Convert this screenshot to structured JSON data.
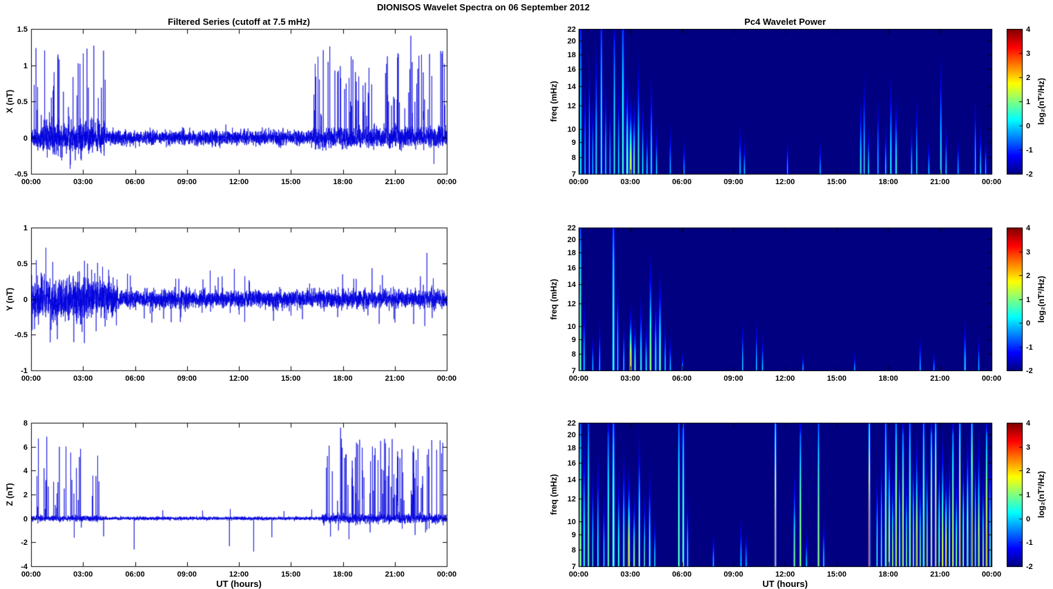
{
  "title": "DIONISOS Wavelet Spectra on 06 September 2012",
  "left_title": "Filtered Series (cutoff at 7.5 mHz)",
  "right_title": "Pc4 Wavelet Power",
  "xlabel": "UT (hours)",
  "series_color": "#0000dd",
  "axes": {
    "x_ticks": [
      "00:00",
      "03:00",
      "06:00",
      "09:00",
      "12:00",
      "15:00",
      "18:00",
      "21:00",
      "00:00"
    ],
    "x_range_hours": [
      0,
      24
    ],
    "freq_tick_vals": [
      7,
      8,
      9,
      10,
      12,
      14,
      16,
      18,
      20,
      22
    ],
    "freq_tick_labels": [
      "7",
      "8",
      "9",
      "10",
      "12",
      "14",
      "16",
      "18",
      "20",
      "22"
    ],
    "freq_scale": "log",
    "freq_range_mhz": [
      7,
      22
    ]
  },
  "colorbar": {
    "label": "log₂(nT²/Hz)",
    "tick_vals": [
      4,
      3,
      2,
      1,
      0,
      -1,
      -2
    ],
    "tick_labels": [
      "4",
      "3",
      "2",
      "1",
      "0",
      "-1",
      "-2"
    ],
    "range": [
      -2,
      4
    ],
    "colormap": "jet"
  },
  "chart_data": [
    {
      "name": "X filtered series",
      "type": "line",
      "ylabel": "X (nT)",
      "ylim": [
        -0.5,
        1.5
      ],
      "ytick_vals": [
        -0.5,
        0,
        0.5,
        1,
        1.5
      ],
      "ytick_labels": [
        "-0.5",
        "0",
        "0.5",
        "1",
        "1.5"
      ],
      "seed": 11,
      "noise": [
        [
          0,
          0.5,
          0.06
        ],
        [
          0.5,
          4.3,
          0.1
        ],
        [
          4.3,
          16.3,
          0.05
        ],
        [
          16.3,
          24,
          0.07
        ]
      ],
      "spikes": [
        {
          "t0": 0.15,
          "t1": 4.3,
          "rate": 0.06,
          "amp": [
            0.25,
            1.25
          ],
          "negProb": 0.25,
          "negScale": 0.35
        },
        {
          "t0": 16.3,
          "t1": 23.9,
          "rate": 0.07,
          "amp": [
            0.25,
            1.2
          ],
          "negProb": 0.1,
          "negScale": 0.3
        }
      ],
      "events": [
        [
          1.62,
          1.15
        ],
        [
          3.62,
          1.3
        ],
        [
          1.7,
          -0.45
        ]
      ]
    },
    {
      "name": "X wavelet power (Pc4)",
      "type": "heatmap",
      "ylabel": "freq (mHz)",
      "flim": [
        7,
        22
      ],
      "clim": [
        -2,
        4
      ],
      "background_log2_power": -2,
      "events": [
        [
          0.1,
          0.05,
          22,
          0.6
        ],
        [
          0.35,
          0.04,
          14,
          0.3
        ],
        [
          0.6,
          0.04,
          16,
          0.5
        ],
        [
          0.8,
          0.04,
          12,
          0.3
        ],
        [
          1.0,
          0.05,
          18,
          0.6
        ],
        [
          1.3,
          0.05,
          22,
          0.8
        ],
        [
          1.55,
          0.04,
          14,
          0.5
        ],
        [
          1.8,
          0.04,
          12,
          0.4
        ],
        [
          2.05,
          0.05,
          20,
          0.7
        ],
        [
          2.3,
          0.04,
          14,
          0.5
        ],
        [
          2.55,
          0.06,
          22,
          1.0
        ],
        [
          2.8,
          0.06,
          14,
          1.6
        ],
        [
          3.0,
          0.07,
          12,
          2.0
        ],
        [
          3.2,
          0.05,
          12,
          1.4
        ],
        [
          3.45,
          0.05,
          16,
          0.9
        ],
        [
          3.7,
          0.04,
          12,
          0.6
        ],
        [
          3.95,
          0.04,
          10,
          0.5
        ],
        [
          4.2,
          0.05,
          14,
          0.7
        ],
        [
          4.5,
          0.04,
          10,
          0.4
        ],
        [
          5.3,
          0.03,
          10,
          0.2
        ],
        [
          6.1,
          0.03,
          9,
          0.1
        ],
        [
          9.35,
          0.04,
          10,
          0.4
        ],
        [
          9.6,
          0.03,
          9,
          0.3
        ],
        [
          12.1,
          0.03,
          9,
          0.15
        ],
        [
          14.0,
          0.03,
          9,
          0.1
        ],
        [
          16.35,
          0.05,
          12,
          0.8
        ],
        [
          16.55,
          0.04,
          14,
          0.9
        ],
        [
          16.8,
          0.04,
          10,
          0.5
        ],
        [
          17.35,
          0.04,
          12,
          0.5
        ],
        [
          17.8,
          0.04,
          10,
          0.5
        ],
        [
          18.1,
          0.05,
          14,
          0.8
        ],
        [
          18.4,
          0.05,
          12,
          1.0
        ],
        [
          19.3,
          0.04,
          10,
          0.5
        ],
        [
          19.6,
          0.04,
          12,
          0.6
        ],
        [
          20.3,
          0.03,
          9,
          0.3
        ],
        [
          21.0,
          0.05,
          16,
          0.8
        ],
        [
          21.3,
          0.04,
          10,
          0.4
        ],
        [
          22.0,
          0.03,
          9,
          0.3
        ],
        [
          23.0,
          0.04,
          12,
          0.6
        ],
        [
          23.3,
          0.04,
          10,
          0.4
        ],
        [
          23.6,
          0.03,
          9,
          0.3
        ]
      ]
    },
    {
      "name": "Y filtered series",
      "type": "line",
      "ylabel": "Y (nT)",
      "ylim": [
        -1,
        1
      ],
      "ytick_vals": [
        -1,
        -0.5,
        0,
        0.5,
        1
      ],
      "ytick_labels": [
        "-1",
        "-0.5",
        "0",
        "0.5",
        "1"
      ],
      "seed": 23,
      "noise": [
        [
          0,
          0.4,
          0.12
        ],
        [
          0.4,
          5,
          0.13
        ],
        [
          5,
          24,
          0.06
        ]
      ],
      "spikes": [
        {
          "t0": 0.05,
          "t1": 5,
          "rate": 0.05,
          "amp": [
            0.15,
            0.55
          ],
          "negProb": 0.5,
          "negScale": 1
        },
        {
          "t0": 5,
          "t1": 23.9,
          "rate": 0.02,
          "amp": [
            0.12,
            0.4
          ],
          "negProb": 0.5,
          "negScale": 1
        }
      ],
      "events": [
        [
          0.3,
          0.62
        ],
        [
          1.25,
          0.6
        ],
        [
          22.85,
          0.6
        ],
        [
          0.2,
          -0.55
        ]
      ]
    },
    {
      "name": "Y wavelet power (Pc4)",
      "type": "heatmap",
      "ylabel": "freq (mHz)",
      "flim": [
        7,
        22
      ],
      "clim": [
        -2,
        4
      ],
      "background_log2_power": -2,
      "events": [
        [
          0.08,
          0.06,
          22,
          1.2
        ],
        [
          0.3,
          0.04,
          12,
          0.5
        ],
        [
          0.8,
          0.03,
          9,
          0.3
        ],
        [
          1.2,
          0.03,
          10,
          0.3
        ],
        [
          2.0,
          0.06,
          22,
          1.3
        ],
        [
          2.25,
          0.04,
          14,
          0.6
        ],
        [
          2.6,
          0.04,
          10,
          0.5
        ],
        [
          3.0,
          0.06,
          11,
          2.6
        ],
        [
          3.25,
          0.05,
          10,
          1.2
        ],
        [
          3.6,
          0.05,
          12,
          1.0
        ],
        [
          3.9,
          0.04,
          10,
          0.8
        ],
        [
          4.15,
          0.06,
          16,
          1.5
        ],
        [
          4.45,
          0.05,
          12,
          1.0
        ],
        [
          4.7,
          0.06,
          14,
          1.4
        ],
        [
          5.0,
          0.04,
          10,
          0.6
        ],
        [
          5.3,
          0.03,
          9,
          0.3
        ],
        [
          6.0,
          0.03,
          8,
          0.15
        ],
        [
          9.5,
          0.04,
          10,
          0.5
        ],
        [
          10.3,
          0.04,
          10,
          0.4
        ],
        [
          10.65,
          0.03,
          9,
          0.35
        ],
        [
          13.0,
          0.03,
          8,
          0.15
        ],
        [
          16.0,
          0.02,
          8,
          0.1
        ],
        [
          19.8,
          0.03,
          9,
          0.2
        ],
        [
          20.6,
          0.03,
          8,
          0.15
        ],
        [
          22.4,
          0.05,
          10,
          0.6
        ],
        [
          23.2,
          0.03,
          9,
          0.25
        ]
      ]
    },
    {
      "name": "Z filtered series",
      "type": "line",
      "ylabel": "Z (nT)",
      "ylim": [
        -4,
        8
      ],
      "ytick_vals": [
        -4,
        -2,
        0,
        2,
        4,
        6,
        8
      ],
      "ytick_labels": [
        "-4",
        "-2",
        "0",
        "2",
        "4",
        "6",
        "8"
      ],
      "seed": 37,
      "noise": [
        [
          0,
          4.2,
          0.12
        ],
        [
          4.2,
          16.8,
          0.07
        ],
        [
          16.8,
          24,
          0.18
        ]
      ],
      "spikes": [
        {
          "t0": 0.1,
          "t1": 4.2,
          "rate": 0.05,
          "amp": [
            0.8,
            7
          ],
          "negProb": 0.05,
          "negScale": 0.3
        },
        {
          "t0": 16.8,
          "t1": 23.9,
          "rate": 0.07,
          "amp": [
            0.8,
            6.8
          ],
          "negProb": 0.08,
          "negScale": 0.3
        }
      ],
      "events": [
        [
          5.95,
          -2.6
        ],
        [
          11.45,
          -2.4
        ],
        [
          12.85,
          -2.8
        ],
        [
          13.9,
          -1.6
        ],
        [
          7.6,
          0.7
        ],
        [
          9.9,
          0.8
        ],
        [
          11.5,
          0.9
        ],
        [
          14.6,
          0.6
        ],
        [
          16.2,
          0.7
        ]
      ]
    },
    {
      "name": "Z wavelet power (Pc4)",
      "type": "heatmap",
      "ylabel": "freq (mHz)",
      "flim": [
        7,
        22
      ],
      "clim": [
        -2,
        4
      ],
      "background_log2_power": -2,
      "events": [
        [
          0.08,
          0.06,
          22,
          1.6
        ],
        [
          0.3,
          0.05,
          18,
          1.0
        ],
        [
          0.55,
          0.05,
          22,
          1.2
        ],
        [
          0.8,
          0.04,
          14,
          0.8
        ],
        [
          1.1,
          0.04,
          16,
          0.9
        ],
        [
          1.45,
          0.04,
          12,
          0.7
        ],
        [
          1.7,
          0.05,
          20,
          1.3
        ],
        [
          2.0,
          0.06,
          22,
          1.9
        ],
        [
          2.3,
          0.05,
          14,
          1.0
        ],
        [
          2.6,
          0.05,
          16,
          1.2
        ],
        [
          2.9,
          0.06,
          14,
          2.4
        ],
        [
          3.2,
          0.05,
          12,
          1.5
        ],
        [
          3.5,
          0.05,
          18,
          1.8
        ],
        [
          3.8,
          0.04,
          12,
          1.0
        ],
        [
          4.1,
          0.05,
          14,
          1.2
        ],
        [
          4.4,
          0.04,
          10,
          0.7
        ],
        [
          5.8,
          0.05,
          22,
          1.5
        ],
        [
          6.05,
          0.05,
          22,
          1.8
        ],
        [
          6.3,
          0.04,
          12,
          0.8
        ],
        [
          7.8,
          0.03,
          9,
          0.3
        ],
        [
          9.4,
          0.04,
          10,
          0.4
        ],
        [
          9.7,
          0.03,
          9,
          0.3
        ],
        [
          11.4,
          0.05,
          22,
          3.2
        ],
        [
          12.5,
          0.05,
          14,
          1.3
        ],
        [
          12.85,
          0.05,
          20,
          1.7
        ],
        [
          13.2,
          0.03,
          9,
          0.4
        ],
        [
          13.9,
          0.05,
          22,
          1.5
        ],
        [
          14.2,
          0.03,
          10,
          0.5
        ],
        [
          16.85,
          0.05,
          22,
          3.6
        ],
        [
          17.3,
          0.04,
          14,
          1.2
        ],
        [
          17.55,
          0.04,
          16,
          1.4
        ],
        [
          17.8,
          0.05,
          22,
          2.0
        ],
        [
          18.0,
          0.05,
          18,
          2.2
        ],
        [
          18.2,
          0.04,
          14,
          1.8
        ],
        [
          18.4,
          0.05,
          22,
          2.4
        ],
        [
          18.6,
          0.04,
          16,
          2.0
        ],
        [
          18.8,
          0.05,
          20,
          2.2
        ],
        [
          19.0,
          0.04,
          14,
          1.6
        ],
        [
          19.2,
          0.05,
          22,
          2.0
        ],
        [
          19.4,
          0.04,
          16,
          1.8
        ],
        [
          19.6,
          0.05,
          18,
          2.4
        ],
        [
          19.8,
          0.04,
          14,
          1.6
        ],
        [
          20.0,
          0.05,
          22,
          2.2
        ],
        [
          20.2,
          0.04,
          16,
          1.8
        ],
        [
          20.45,
          0.05,
          20,
          2.6
        ],
        [
          20.7,
          0.05,
          22,
          3.0
        ],
        [
          20.9,
          0.04,
          16,
          2.0
        ],
        [
          21.1,
          0.05,
          18,
          2.2
        ],
        [
          21.3,
          0.05,
          14,
          2.6
        ],
        [
          21.5,
          0.04,
          16,
          1.8
        ],
        [
          21.7,
          0.05,
          20,
          2.2
        ],
        [
          21.9,
          0.04,
          14,
          1.8
        ],
        [
          22.1,
          0.05,
          22,
          3.0
        ],
        [
          22.3,
          0.04,
          16,
          2.0
        ],
        [
          22.55,
          0.05,
          18,
          2.4
        ],
        [
          22.8,
          0.05,
          22,
          3.4
        ],
        [
          23.0,
          0.04,
          16,
          2.0
        ],
        [
          23.2,
          0.05,
          18,
          2.2
        ],
        [
          23.45,
          0.04,
          14,
          1.8
        ],
        [
          23.65,
          0.05,
          20,
          2.4
        ],
        [
          23.85,
          0.04,
          16,
          1.6
        ]
      ]
    }
  ]
}
